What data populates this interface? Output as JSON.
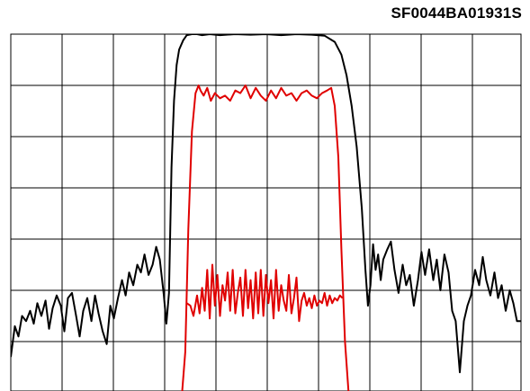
{
  "chart_data": {
    "type": "line",
    "title": "SF0044BA01931S",
    "xlabel": "",
    "ylabel": "",
    "xlim": [
      0,
      10
    ],
    "ylim": [
      0,
      7
    ],
    "grid": true,
    "tick_labels": false,
    "series": [
      {
        "color": "#000000",
        "x": [
          0.0,
          0.08,
          0.15,
          0.22,
          0.3,
          0.38,
          0.45,
          0.52,
          0.6,
          0.68,
          0.75,
          0.82,
          0.9,
          0.98,
          1.05,
          1.12,
          1.2,
          1.28,
          1.35,
          1.42,
          1.5,
          1.58,
          1.65,
          1.72,
          1.8,
          1.88,
          1.95,
          2.02,
          2.1,
          2.18,
          2.25,
          2.32,
          2.4,
          2.48,
          2.55,
          2.62,
          2.7,
          2.78,
          2.85,
          2.92,
          3.0,
          3.05,
          3.1,
          3.15,
          3.2,
          3.25,
          3.3,
          3.38,
          3.45,
          3.55,
          3.65,
          3.75,
          3.9,
          4.1,
          4.4,
          4.7,
          5.0,
          5.3,
          5.6,
          5.9,
          6.15,
          6.35,
          6.48,
          6.58,
          6.68,
          6.78,
          6.88,
          6.95,
          7.0,
          7.05,
          7.1,
          7.15,
          7.2,
          7.25,
          7.3,
          7.38,
          7.45,
          7.52,
          7.6,
          7.68,
          7.75,
          7.82,
          7.9,
          7.98,
          8.05,
          8.12,
          8.2,
          8.28,
          8.35,
          8.42,
          8.5,
          8.58,
          8.65,
          8.72,
          8.8,
          8.88,
          8.95,
          9.02,
          9.1,
          9.18,
          9.25,
          9.32,
          9.4,
          9.48,
          9.55,
          9.62,
          9.7,
          9.78,
          9.85,
          9.92,
          10.0
        ],
        "y": [
          0.7,
          1.3,
          1.1,
          1.5,
          1.4,
          1.6,
          1.35,
          1.75,
          1.5,
          1.8,
          1.25,
          1.65,
          1.9,
          1.7,
          1.2,
          1.85,
          1.95,
          1.5,
          1.1,
          1.6,
          1.85,
          1.4,
          1.9,
          1.55,
          1.2,
          0.95,
          1.7,
          1.45,
          1.85,
          2.2,
          1.9,
          2.35,
          2.1,
          2.5,
          2.35,
          2.7,
          2.3,
          2.5,
          2.85,
          2.6,
          1.9,
          1.35,
          1.95,
          4.4,
          5.7,
          6.4,
          6.7,
          6.88,
          6.98,
          7.0,
          7.0,
          6.98,
          7.0,
          6.98,
          7.0,
          6.99,
          7.0,
          6.98,
          7.0,
          6.99,
          6.97,
          6.85,
          6.6,
          6.2,
          5.6,
          4.8,
          3.6,
          2.4,
          1.7,
          2.1,
          2.9,
          2.4,
          2.7,
          2.2,
          2.6,
          2.8,
          2.95,
          2.4,
          1.95,
          2.5,
          2.1,
          2.3,
          1.7,
          2.2,
          2.75,
          2.3,
          2.8,
          2.2,
          2.6,
          2.0,
          2.7,
          2.35,
          1.6,
          1.4,
          0.4,
          1.4,
          1.7,
          1.9,
          2.4,
          2.1,
          2.65,
          2.2,
          1.9,
          2.35,
          1.85,
          2.1,
          1.6,
          2.0,
          1.75,
          1.4,
          1.4
        ]
      },
      {
        "color": "#e00000",
        "x": [
          3.35,
          3.42,
          3.48,
          3.55,
          3.62,
          3.68,
          3.72,
          3.78,
          3.85,
          3.92,
          4.0,
          4.1,
          4.2,
          4.3,
          4.4,
          4.5,
          4.6,
          4.7,
          4.8,
          4.9,
          5.0,
          5.1,
          5.2,
          5.3,
          5.4,
          5.5,
          5.6,
          5.7,
          5.8,
          5.9,
          6.0,
          6.1,
          6.2,
          6.28,
          6.35,
          6.42,
          6.48,
          6.55,
          6.62,
          6.7
        ],
        "y": [
          -0.1,
          0.8,
          3.2,
          5.1,
          5.85,
          6.0,
          5.9,
          5.8,
          5.95,
          5.7,
          5.85,
          5.75,
          5.8,
          5.7,
          5.9,
          5.85,
          6.0,
          5.75,
          5.95,
          5.8,
          5.7,
          5.9,
          5.75,
          5.95,
          5.8,
          5.85,
          5.7,
          5.85,
          5.9,
          5.8,
          5.75,
          5.85,
          5.9,
          5.95,
          5.6,
          4.6,
          2.8,
          1.0,
          0.0,
          -0.1
        ]
      },
      {
        "color": "#e00000",
        "x": [
          3.45,
          3.52,
          3.58,
          3.65,
          3.7,
          3.75,
          3.8,
          3.85,
          3.9,
          3.95,
          4.0,
          4.05,
          4.1,
          4.15,
          4.2,
          4.25,
          4.3,
          4.35,
          4.4,
          4.45,
          4.5,
          4.55,
          4.6,
          4.65,
          4.7,
          4.75,
          4.8,
          4.85,
          4.9,
          4.95,
          5.0,
          5.05,
          5.1,
          5.15,
          5.2,
          5.25,
          5.3,
          5.35,
          5.4,
          5.45,
          5.5,
          5.55,
          5.6,
          5.65,
          5.7,
          5.75,
          5.8,
          5.85,
          5.9,
          5.95,
          6.0,
          6.05,
          6.1,
          6.15,
          6.2,
          6.25,
          6.3,
          6.35,
          6.4,
          6.45,
          6.5
        ],
        "y": [
          1.75,
          1.7,
          1.5,
          1.9,
          1.55,
          2.05,
          1.6,
          2.4,
          1.45,
          2.5,
          1.7,
          2.3,
          1.5,
          2.1,
          1.8,
          2.35,
          1.6,
          2.4,
          1.55,
          1.95,
          2.25,
          1.5,
          2.4,
          1.65,
          2.2,
          1.45,
          2.35,
          1.55,
          2.4,
          1.5,
          2.3,
          1.75,
          2.2,
          1.45,
          2.4,
          1.6,
          2.1,
          1.8,
          1.6,
          2.3,
          1.55,
          1.85,
          2.25,
          1.4,
          1.8,
          1.95,
          1.7,
          1.85,
          1.65,
          1.9,
          1.7,
          1.8,
          1.75,
          1.95,
          1.7,
          1.9,
          1.75,
          1.85,
          1.8,
          1.9,
          1.85
        ]
      }
    ]
  }
}
